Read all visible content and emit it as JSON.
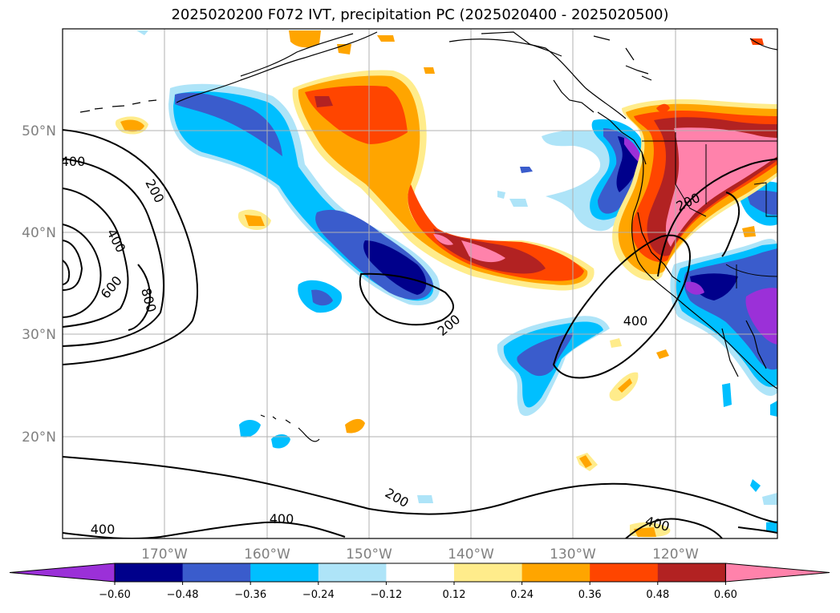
{
  "title": "2025020200 F072 IVT, precipitation PC (2025020400 - 2025020500)",
  "lat_labels": [
    "50°N",
    "40°N",
    "30°N",
    "20°N"
  ],
  "lon_labels": [
    "170°W",
    "160°W",
    "150°W",
    "140°W",
    "130°W",
    "120°W"
  ],
  "contour_labels": [
    "400",
    "200",
    "400",
    "600",
    "800",
    "200",
    "200",
    "400",
    "400",
    "400",
    "200",
    "400"
  ],
  "colorbar": {
    "ticks": [
      "−0.60",
      "−0.48",
      "−0.36",
      "−0.24",
      "−0.12",
      "0.12",
      "0.24",
      "0.36",
      "0.48",
      "0.60"
    ],
    "colors": [
      "#9b30d8",
      "#00008b",
      "#3a5ccc",
      "#00bfff",
      "#aee4f8",
      "#ffffff",
      "#ffec8b",
      "#ffa500",
      "#ff4500",
      "#b22222",
      "#ff82ab"
    ]
  },
  "colors": {
    "pos_low": "#ffec8b",
    "pos_mid": "#ffa500",
    "pos_high": "#ff4500",
    "pos_vhigh": "#b22222",
    "pos_max": "#ff82ab",
    "neg_low": "#aee4f8",
    "neg_mid": "#00bfff",
    "neg_high": "#3a5ccc",
    "neg_vhigh": "#00008b",
    "neg_max": "#9b30d8"
  }
}
